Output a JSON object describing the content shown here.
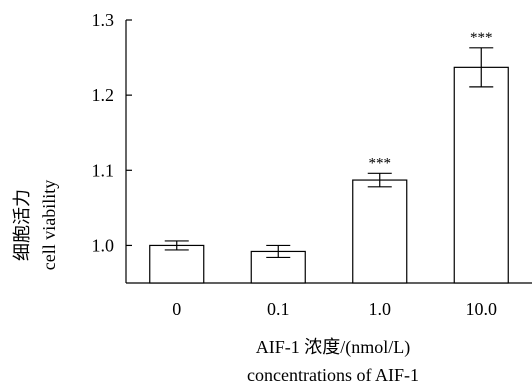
{
  "chart_data": {
    "type": "bar",
    "categories": [
      "0",
      "0.1",
      "1.0",
      "10.0"
    ],
    "values": [
      1.0,
      0.992,
      1.087,
      1.237
    ],
    "errors": [
      0.006,
      0.008,
      0.009,
      0.026
    ],
    "annotations": [
      "",
      "",
      "***",
      "***"
    ],
    "ylim": [
      0.95,
      1.3
    ],
    "yticks": [
      1.0,
      1.1,
      1.2,
      1.3
    ],
    "ytick_labels": [
      "1.0",
      "1.1",
      "1.2",
      "1.3"
    ],
    "ylabel_lines": [
      "细胞活力",
      "cell viability"
    ],
    "xlabel_lines": [
      "AIF-1 浓度/(nmol/L)",
      "concentrations of AIF-1"
    ],
    "grid": false,
    "bar_fill": "#ffffff",
    "line_color": "#000000"
  }
}
